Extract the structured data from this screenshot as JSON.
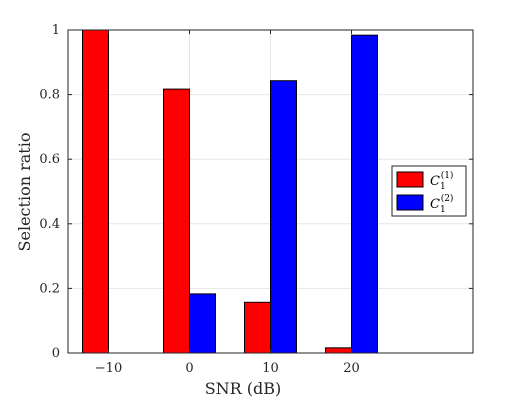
{
  "chart_data": {
    "type": "bar",
    "categories": [
      "−10",
      "0",
      "10",
      "20"
    ],
    "series": [
      {
        "name": "C1(1)",
        "color": "#ff0000",
        "values": [
          1.0,
          0.817,
          0.157,
          0.016
        ]
      },
      {
        "name": "C1(2)",
        "color": "#0000ff",
        "values": [
          0.0,
          0.183,
          0.843,
          0.984
        ]
      }
    ],
    "xlabel": "SNR (dB)",
    "ylabel": "Selection ratio",
    "ylim": [
      0,
      1
    ],
    "yticks": [
      "0",
      "0.2",
      "0.4",
      "0.6",
      "0.8",
      "1"
    ],
    "grid": true,
    "legend_position": "right",
    "legend": {
      "entries": [
        {
          "base": "C",
          "sub": "1",
          "sup": "(1)"
        },
        {
          "base": "C",
          "sub": "1",
          "sup": "(2)"
        }
      ]
    }
  }
}
